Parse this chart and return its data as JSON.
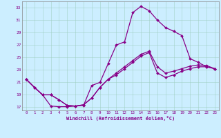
{
  "xlabel": "Windchill (Refroidissement éolien,°C)",
  "bg_color": "#cceeff",
  "line_color": "#880088",
  "grid_color": "#99ccbb",
  "marker": "D",
  "markersize": 2.0,
  "linewidth": 0.9,
  "xlim": [
    -0.5,
    23.5
  ],
  "ylim": [
    16.5,
    34.0
  ],
  "xticks": [
    0,
    1,
    2,
    3,
    4,
    5,
    6,
    7,
    8,
    9,
    10,
    11,
    12,
    13,
    14,
    15,
    16,
    17,
    18,
    19,
    20,
    21,
    22,
    23
  ],
  "yticks": [
    17,
    19,
    21,
    23,
    25,
    27,
    29,
    31,
    33
  ],
  "line1_x": [
    0,
    1,
    2,
    3,
    4,
    5,
    6,
    7,
    8,
    9,
    10,
    11,
    12,
    13,
    14,
    15,
    16,
    17,
    18,
    19,
    20,
    21,
    22,
    23
  ],
  "line1_y": [
    21.5,
    20.2,
    19.0,
    17.2,
    17.1,
    17.1,
    17.2,
    17.3,
    20.5,
    21.0,
    24.0,
    27.0,
    27.5,
    32.2,
    33.2,
    32.5,
    31.0,
    29.8,
    29.2,
    28.5,
    24.8,
    24.2,
    23.5,
    23.2
  ],
  "line2_x": [
    0,
    1,
    2,
    3,
    4,
    5,
    6,
    7,
    8,
    9,
    10,
    11,
    12,
    13,
    14,
    15,
    16,
    17,
    18,
    19,
    20,
    21,
    22,
    23
  ],
  "line2_y": [
    21.5,
    20.2,
    19.0,
    19.0,
    18.2,
    17.3,
    17.2,
    17.4,
    18.5,
    20.2,
    21.5,
    22.2,
    23.2,
    24.2,
    25.2,
    25.8,
    22.5,
    21.8,
    22.2,
    22.8,
    23.2,
    23.5,
    23.5,
    23.2
  ],
  "line3_x": [
    0,
    1,
    2,
    3,
    4,
    5,
    6,
    7,
    8,
    9,
    10,
    11,
    12,
    13,
    14,
    15,
    16,
    17,
    18,
    19,
    20,
    21,
    22,
    23
  ],
  "line3_y": [
    21.5,
    20.2,
    19.0,
    19.0,
    18.2,
    17.3,
    17.2,
    17.4,
    18.5,
    20.2,
    21.5,
    22.5,
    23.5,
    24.5,
    25.5,
    26.0,
    23.5,
    22.5,
    22.8,
    23.2,
    23.6,
    23.8,
    23.7,
    23.2
  ]
}
